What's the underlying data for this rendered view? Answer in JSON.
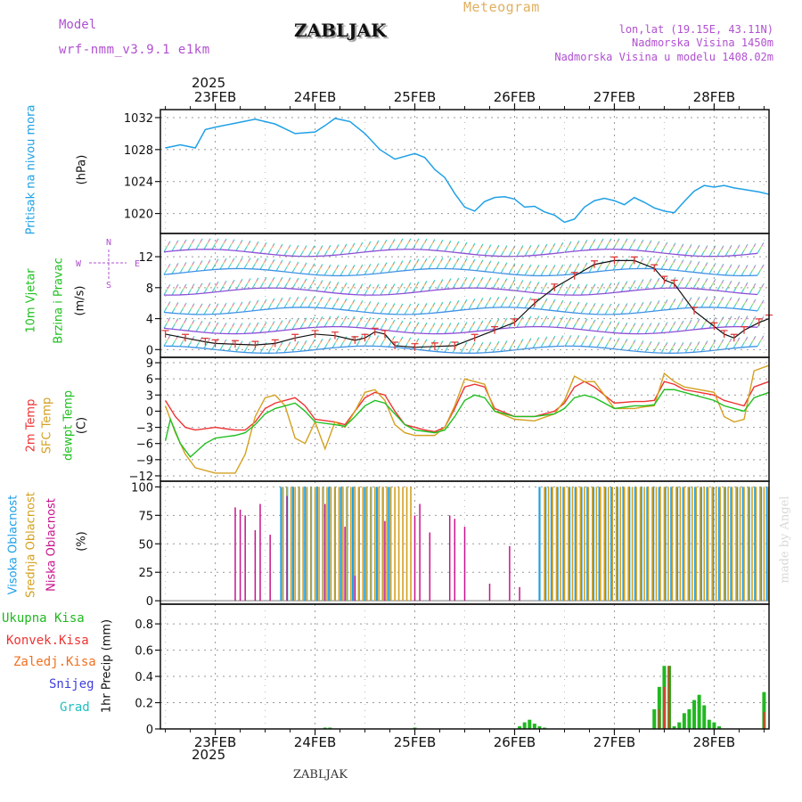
{
  "header": {
    "model_label": "Model",
    "model_name": "wrf-nmm_v3.9.1 e1km",
    "station_title": "ZABLJAK",
    "meteogram_label": "Meteogram",
    "lonlat": "lon,lat (19.15E, 43.11N)",
    "altitude": "Nadmorska Visina 1450m",
    "model_altitude": "Nadmorska Visina u modelu 1408.02m",
    "watermark": "made by Angel",
    "footer_station": "ZABLJAK"
  },
  "colors": {
    "pressure": "#1ea0e6",
    "wind_label": "#20c020",
    "temp2m": "#ee3333",
    "sfc_temp": "#d4a020",
    "dewpt": "#20c020",
    "cloud_high": "#1ea0e6",
    "cloud_mid": "#d4a020",
    "cloud_low": "#c8148c",
    "total_precip": "#20b820",
    "convective": "#ee3333",
    "frozen": "#f07020",
    "snow": "#4040dd",
    "graupel": "#20c0c0",
    "header_purple": "#b050d0",
    "meteogram_gold": "#e0b060"
  },
  "chart_data": [
    {
      "type": "line",
      "id": "pressure",
      "ylabel_lines": [
        "Pritisak na nivou mora",
        "(hPa)"
      ],
      "y_ticks": [
        "1032",
        "1028",
        "1024",
        "1020"
      ],
      "ylim": [
        1017.5,
        1033
      ],
      "x_unit": "days_from_23FEB_00UTC",
      "series": [
        {
          "x": [
            -0.5,
            -0.35,
            -0.2,
            -0.1,
            0,
            0.2,
            0.4,
            0.6,
            0.8,
            1.0,
            1.1,
            1.2,
            1.35,
            1.5,
            1.65,
            1.8,
            2.0,
            2.1,
            2.2,
            2.3,
            2.4,
            2.5,
            2.6,
            2.7,
            2.8,
            2.9,
            3.0,
            3.1,
            3.2,
            3.3,
            3.4,
            3.5,
            3.6,
            3.7,
            3.8,
            3.9,
            4.0,
            4.1,
            4.2,
            4.3,
            4.4,
            4.5,
            4.6,
            4.7,
            4.8,
            4.9,
            5.0,
            5.1,
            5.2,
            5.3,
            5.45,
            5.55
          ],
          "values": [
            1028.2,
            1028.6,
            1028.2,
            1030.5,
            1030.8,
            1031.3,
            1031.8,
            1031.2,
            1030.0,
            1030.2,
            1031.0,
            1031.9,
            1031.5,
            1030.0,
            1028.0,
            1026.8,
            1027.5,
            1027.0,
            1025.5,
            1024.5,
            1022.5,
            1020.8,
            1020.3,
            1021.5,
            1022.0,
            1022.1,
            1021.8,
            1020.8,
            1020.9,
            1020.2,
            1019.8,
            1018.9,
            1019.3,
            1020.8,
            1021.6,
            1021.9,
            1021.6,
            1021.1,
            1022.0,
            1021.4,
            1020.7,
            1020.3,
            1020.1,
            1021.5,
            1022.8,
            1023.5,
            1023.3,
            1023.5,
            1023.2,
            1023.0,
            1022.7,
            1022.4
          ]
        }
      ]
    },
    {
      "type": "line",
      "id": "wind",
      "ylabel_lines": [
        "10m Vjetar",
        "Brzina i Pravac",
        "(m/s)"
      ],
      "compass": [
        "N",
        "E",
        "S",
        "W"
      ],
      "y_ticks": [
        "12",
        "8",
        "4",
        "0"
      ],
      "ylim": [
        -1,
        15
      ],
      "x_unit": "days_from_23FEB_00UTC",
      "series": [
        {
          "name": "speed",
          "x": [
            -0.5,
            -0.3,
            -0.1,
            0,
            0.2,
            0.4,
            0.6,
            0.8,
            1.0,
            1.2,
            1.4,
            1.5,
            1.6,
            1.7,
            1.8,
            2.0,
            2.2,
            2.4,
            2.6,
            2.8,
            3.0,
            3.2,
            3.4,
            3.6,
            3.8,
            4.0,
            4.2,
            4.4,
            4.5,
            4.6,
            4.8,
            5.0,
            5.1,
            5.2,
            5.3,
            5.45,
            5.55
          ],
          "values": [
            2.0,
            1.5,
            1.0,
            0.8,
            0.7,
            0.6,
            0.8,
            1.5,
            2.0,
            1.8,
            1.2,
            1.5,
            2.3,
            2.0,
            0.5,
            0.3,
            0.4,
            0.5,
            1.5,
            2.5,
            3.5,
            6.0,
            8.0,
            9.5,
            11.0,
            11.5,
            11.5,
            10.5,
            9.0,
            8.5,
            5.0,
            3.0,
            2.0,
            1.5,
            2.5,
            3.5,
            4.0
          ]
        }
      ]
    },
    {
      "type": "line",
      "id": "temperature",
      "ylabel_lines": [
        "2m Temp",
        "SFC Temp",
        "dewpt Temp",
        "(C)"
      ],
      "y_ticks": [
        "9",
        "6",
        "3",
        "0",
        "−3",
        "−6",
        "−9",
        "−12"
      ],
      "ylim": [
        -13,
        10
      ],
      "x_unit": "days_from_23FEB_00UTC",
      "series": [
        {
          "name": "2m Temp",
          "x": [
            -0.5,
            -0.4,
            -0.3,
            -0.2,
            0,
            0.2,
            0.3,
            0.4,
            0.5,
            0.6,
            0.8,
            0.9,
            1.0,
            1.2,
            1.3,
            1.4,
            1.5,
            1.6,
            1.7,
            1.8,
            1.9,
            2.0,
            2.1,
            2.2,
            2.3,
            2.4,
            2.5,
            2.6,
            2.7,
            2.8,
            3.0,
            3.2,
            3.4,
            3.5,
            3.6,
            3.7,
            3.8,
            4.0,
            4.2,
            4.3,
            4.4,
            4.5,
            4.6,
            4.7,
            5.0,
            5.1,
            5.2,
            5.3,
            5.4,
            5.55
          ],
          "values": [
            2.0,
            -1.0,
            -3.0,
            -3.5,
            -3.0,
            -3.5,
            -3.5,
            -2.0,
            0.5,
            1.5,
            2.5,
            1.0,
            -1.5,
            -2.0,
            -2.5,
            0.0,
            2.5,
            3.5,
            3.0,
            0.0,
            -2.5,
            -3.0,
            -3.5,
            -3.8,
            -3.0,
            0.5,
            4.5,
            5.0,
            4.5,
            0.5,
            -1.0,
            -1.0,
            0.0,
            1.5,
            4.5,
            5.5,
            4.5,
            1.5,
            1.8,
            1.8,
            2.0,
            5.5,
            5.0,
            4.0,
            3.0,
            2.0,
            1.5,
            1.0,
            4.5,
            5.5
          ]
        },
        {
          "name": "SFC Temp",
          "x": [
            -0.5,
            -0.4,
            -0.3,
            -0.2,
            0,
            0.2,
            0.3,
            0.4,
            0.5,
            0.6,
            0.7,
            0.8,
            0.9,
            1.0,
            1.1,
            1.2,
            1.3,
            1.4,
            1.5,
            1.6,
            1.7,
            1.8,
            1.9,
            2.0,
            2.1,
            2.2,
            2.3,
            2.4,
            2.5,
            2.6,
            2.7,
            2.8,
            3.0,
            3.2,
            3.4,
            3.5,
            3.6,
            3.7,
            3.8,
            4.0,
            4.2,
            4.3,
            4.4,
            4.5,
            4.6,
            4.7,
            5.0,
            5.1,
            5.2,
            5.3,
            5.4,
            5.55
          ],
          "values": [
            1.0,
            -4.0,
            -8.0,
            -10.5,
            -11.5,
            -11.5,
            -8.0,
            -1.0,
            2.5,
            3.0,
            1.0,
            -5.0,
            -6.0,
            -2.0,
            -7.0,
            -2.0,
            -3.0,
            0.0,
            3.5,
            4.0,
            2.0,
            -2.5,
            -4.0,
            -4.5,
            -4.5,
            -4.5,
            -3.0,
            1.0,
            6.0,
            5.5,
            5.0,
            0.0,
            -1.5,
            -1.8,
            -0.5,
            2.0,
            6.5,
            5.5,
            5.5,
            0.5,
            0.5,
            0.8,
            1.0,
            7.0,
            5.5,
            4.5,
            3.5,
            -1.0,
            -2.0,
            -1.5,
            7.5,
            8.5
          ]
        },
        {
          "name": "dewpt Temp",
          "x": [
            -0.5,
            -0.45,
            -0.35,
            -0.25,
            -0.1,
            0,
            0.2,
            0.3,
            0.4,
            0.5,
            0.6,
            0.8,
            0.9,
            1.0,
            1.2,
            1.3,
            1.4,
            1.5,
            1.6,
            1.7,
            1.8,
            1.9,
            2.0,
            2.2,
            2.3,
            2.4,
            2.5,
            2.6,
            2.7,
            2.8,
            3.0,
            3.2,
            3.4,
            3.5,
            3.6,
            3.7,
            3.8,
            4.0,
            4.2,
            4.3,
            4.4,
            4.5,
            4.6,
            4.7,
            5.0,
            5.1,
            5.2,
            5.3,
            5.4,
            5.55
          ],
          "values": [
            -5.5,
            -1.5,
            -6.0,
            -8.5,
            -6.0,
            -5.0,
            -4.5,
            -4.0,
            -2.5,
            -0.5,
            0.5,
            1.5,
            0.0,
            -2.0,
            -2.5,
            -2.8,
            -1.0,
            1.0,
            2.0,
            1.5,
            -0.5,
            -2.5,
            -3.5,
            -4.0,
            -3.5,
            -1.0,
            2.0,
            3.0,
            2.5,
            0.0,
            -1.0,
            -1.0,
            -0.5,
            0.5,
            2.5,
            3.0,
            2.5,
            0.5,
            1.0,
            1.0,
            1.2,
            4.0,
            4.0,
            3.5,
            2.0,
            1.0,
            0.5,
            0.0,
            2.5,
            3.5
          ]
        }
      ]
    },
    {
      "type": "bar",
      "id": "cloud",
      "ylabel_lines": [
        "Visoka Oblacnost",
        "Srednja Oblacnost",
        "Niska Oblacnost",
        "(%)"
      ],
      "y_ticks": [
        "100",
        "75",
        "50",
        "25",
        "0"
      ],
      "ylim": [
        -3,
        105
      ],
      "x_unit": "days_from_23FEB_00UTC",
      "series": [
        {
          "name": "Niska Oblacnost",
          "x": [
            0.2,
            0.25,
            0.3,
            0.4,
            0.45,
            0.55,
            0.72,
            1.1,
            1.3,
            1.4,
            1.7,
            2.0,
            2.05,
            2.15,
            2.35,
            2.4,
            2.5,
            2.75,
            2.95,
            3.05
          ],
          "values": [
            82,
            80,
            75,
            62,
            85,
            58,
            92,
            85,
            65,
            22,
            70,
            75,
            85,
            60,
            75,
            72,
            65,
            15,
            48,
            12
          ]
        },
        {
          "name": "Srednja Oblacnost",
          "x_start": 0.68,
          "x_end": 2.0,
          "spacing": 0.04,
          "start2": 3.3,
          "end2": 5.55,
          "value": 100
        },
        {
          "name": "Visoka Oblacnost",
          "x_start": 0.66,
          "x_end": 1.8,
          "spacing": 0.06,
          "start2": 3.25,
          "end2": 5.55,
          "value": 100
        }
      ]
    },
    {
      "type": "bar",
      "id": "precip",
      "ylabel_lines": [
        "1hr Precip (mm)"
      ],
      "legend": [
        "Ukupna Kisa",
        "Konvek.Kisa",
        "Zaledj.Kisa",
        "Snijeg",
        "Grad"
      ],
      "y_ticks": [
        "0.8",
        "0.6",
        "0.4",
        "0.2",
        "0"
      ],
      "ylim": [
        0,
        0.95
      ],
      "x_unit": "days_from_23FEB_00UTC",
      "series": [
        {
          "name": "Ukupna Kisa",
          "x": [
            1.1,
            1.15,
            2.0,
            3.05,
            3.1,
            3.15,
            3.2,
            3.25,
            3.3,
            4.4,
            4.45,
            4.5,
            4.55,
            4.6,
            4.65,
            4.7,
            4.75,
            4.8,
            4.85,
            4.9,
            4.95,
            5.0,
            5.05,
            5.5
          ],
          "values": [
            0.01,
            0.01,
            0.01,
            0.02,
            0.05,
            0.07,
            0.04,
            0.02,
            0.01,
            0.15,
            0.32,
            0.48,
            0.48,
            0.02,
            0.05,
            0.12,
            0.15,
            0.22,
            0.26,
            0.18,
            0.07,
            0.05,
            0.02,
            0.28
          ]
        },
        {
          "name": "Konvek.Kisa",
          "x": [
            4.45,
            4.5,
            4.55,
            5.5
          ],
          "values": [
            0.15,
            0.32,
            0.48,
            0.13
          ]
        }
      ]
    }
  ],
  "x_axis": {
    "top_year": "2025",
    "bottom_year": "2025",
    "day_labels": [
      "23FEB",
      "24FEB",
      "25FEB",
      "26FEB",
      "27FEB",
      "28FEB"
    ],
    "xlim": [
      -0.55,
      5.55
    ]
  }
}
